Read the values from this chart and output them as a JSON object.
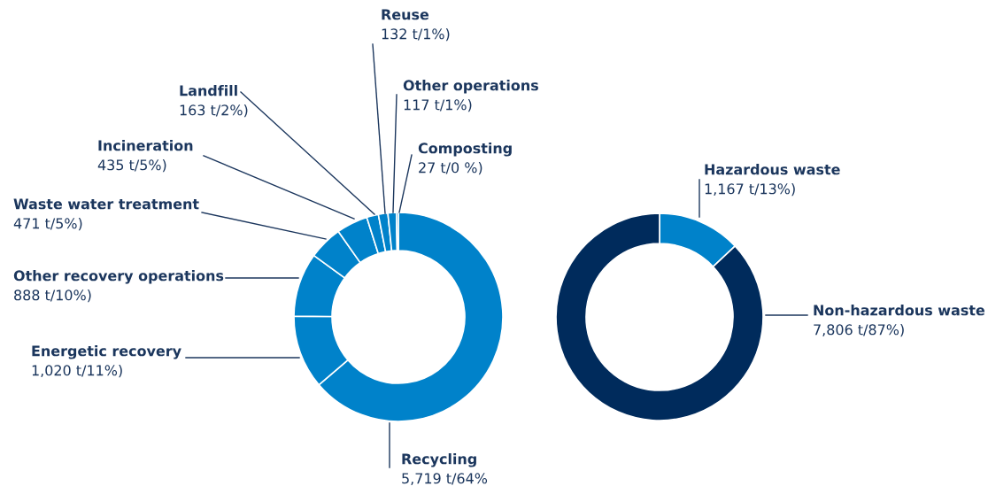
{
  "chart_data": [
    {
      "type": "donut",
      "categories": [
        "Recycling",
        "Energetic recovery",
        "Other recovery operations",
        "Waste water treatment",
        "Incineration",
        "Landfill",
        "Reuse",
        "Other operations",
        "Composting"
      ],
      "values": [
        5719,
        1020,
        888,
        471,
        435,
        163,
        132,
        117,
        27
      ],
      "colors": [
        "#0082ca",
        "#0082ca",
        "#0082ca",
        "#0082ca",
        "#0082ca",
        "#0082ca",
        "#0082ca",
        "#0082ca",
        "#0082ca"
      ],
      "value_labels": [
        "5,719 t/64%",
        "1,020 t/11%)",
        "888 t/10%)",
        "471 t/5%)",
        "435 t/5%)",
        "163 t/2%)",
        "132 t/1%)",
        "117 t/1%)",
        "27 t/0 %)"
      ]
    },
    {
      "type": "donut",
      "categories": [
        "Hazardous waste",
        "Non-hazardous waste"
      ],
      "values": [
        1167,
        7806
      ],
      "colors": [
        "#0082ca",
        "#002b5c"
      ],
      "value_labels": [
        "1,167 t/13%)",
        "7,806 t/87%)"
      ]
    }
  ]
}
